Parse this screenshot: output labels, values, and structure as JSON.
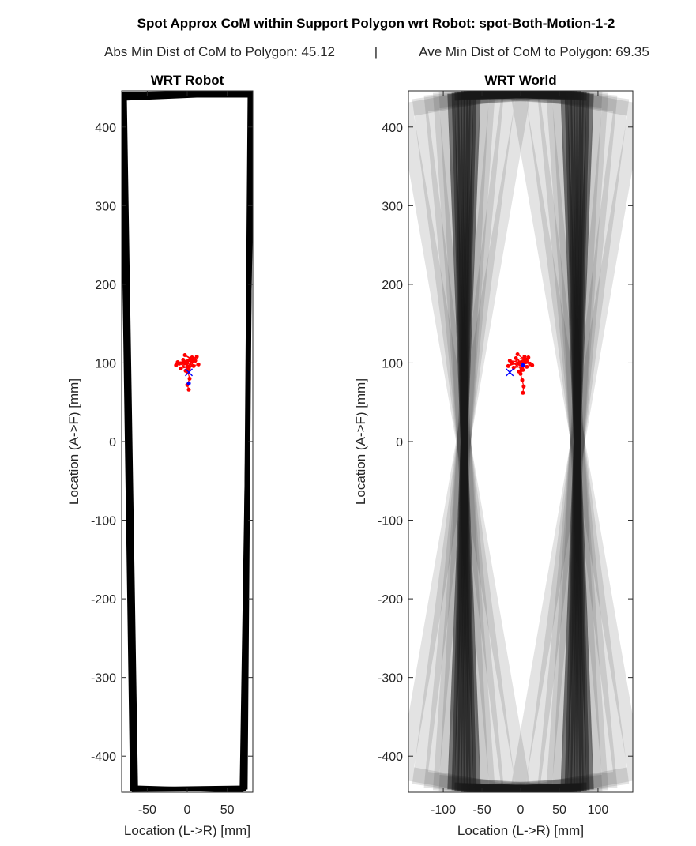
{
  "figure": {
    "title": "Spot Approx CoM within Support Polygon wrt Robot: spot-Both-Motion-1-2",
    "subtitle_abs_label": "Abs Min Dist of CoM to Polygon:",
    "subtitle_abs_value": "45.12",
    "subtitle_separator": "|",
    "subtitle_ave_label": "Ave Min Dist of CoM to Polygon:",
    "subtitle_ave_value": "69.35"
  },
  "chart_data": [
    {
      "type": "line",
      "title": "WRT Robot",
      "xlabel": "Location (L->R) [mm]",
      "ylabel": "Location (A->F) [mm]",
      "xlim": [
        -82,
        82
      ],
      "ylim": [
        -446,
        446
      ],
      "xticks": [
        -50,
        0,
        50
      ],
      "yticks": [
        -400,
        -300,
        -200,
        -100,
        0,
        100,
        200,
        300,
        400
      ],
      "xtick_labels": [
        "-50",
        "0",
        "50"
      ],
      "ytick_labels": [
        "-400",
        "-300",
        "-200",
        "-100",
        "0",
        "100",
        "200",
        "300",
        "400"
      ],
      "grid": false,
      "colors": {
        "polygon": "#000000",
        "com_trace": "#ff0000",
        "marker": "#0000ff"
      },
      "series": [
        {
          "kind": "support-polygon",
          "polygons": [
            [
              [
                -82,
                436
              ],
              [
                80,
                443
              ],
              [
                73,
                -440
              ],
              [
                -69,
                -442
              ]
            ],
            [
              [
                -78,
                440
              ],
              [
                82,
                440
              ],
              [
                68,
                -444
              ],
              [
                -64,
                -440
              ]
            ],
            [
              [
                -80,
                442
              ],
              [
                78,
                445
              ],
              [
                71,
                -442
              ],
              [
                -67,
                -443
              ]
            ]
          ]
        },
        {
          "kind": "com-trace",
          "x": [
            0,
            -5,
            8,
            -10,
            6,
            2,
            -12,
            10,
            -3,
            14,
            -8,
            4,
            -14,
            12,
            -2,
            6,
            0,
            -4,
            9,
            1,
            3,
            0,
            2
          ],
          "y": [
            100,
            104,
            96,
            99,
            107,
            92,
            101,
            103,
            110,
            98,
            93,
            105,
            97,
            108,
            90,
            102,
            95,
            100,
            104,
            88,
            80,
            72,
            66
          ]
        },
        {
          "kind": "markers",
          "x_cross": [
            2
          ],
          "y_cross": [
            88
          ],
          "x_dot": [
            2
          ],
          "y_dot": [
            74
          ]
        }
      ]
    },
    {
      "type": "line",
      "title": "WRT World",
      "xlabel": "Location (L->R) [mm]",
      "ylabel": "Location (A->F) [mm]",
      "xlim": [
        -145,
        145
      ],
      "ylim": [
        -446,
        446
      ],
      "xticks": [
        -100,
        -50,
        0,
        50,
        100
      ],
      "yticks": [
        -400,
        -300,
        -200,
        -100,
        0,
        100,
        200,
        300,
        400
      ],
      "xtick_labels": [
        "-100",
        "-50",
        "0",
        "50",
        "100"
      ],
      "ytick_labels": [
        "-400",
        "-300",
        "-200",
        "-100",
        "0",
        "100",
        "200",
        "300",
        "400"
      ],
      "grid": false,
      "colors": {
        "polygon": "#1a1a1a",
        "com_trace": "#ff0000",
        "marker": "#0000ff"
      },
      "series": [
        {
          "kind": "rotating-support-polygon",
          "half_width": 73,
          "half_length": 441,
          "angles_deg": [
            -10,
            -7.5,
            -5.5,
            -4,
            -3,
            -2.2,
            -1.5,
            -1,
            -0.5,
            0,
            0.5,
            1,
            1.5,
            2.2,
            3,
            4,
            5.5,
            7.5,
            10
          ]
        },
        {
          "kind": "com-trace",
          "x": [
            0,
            -6,
            8,
            -12,
            5,
            3,
            -14,
            12,
            -4,
            15,
            -9,
            6,
            -16,
            10,
            -2,
            7,
            1,
            -3,
            8,
            0,
            2,
            4,
            3
          ],
          "y": [
            100,
            106,
            95,
            100,
            108,
            91,
            103,
            99,
            111,
            97,
            94,
            104,
            96,
            107,
            89,
            101,
            93,
            99,
            103,
            86,
            78,
            70,
            62
          ]
        },
        {
          "kind": "markers",
          "x_cross": [
            -14
          ],
          "y_cross": [
            88
          ],
          "x_dot": [
            3
          ],
          "y_dot": [
            97
          ]
        }
      ]
    }
  ]
}
